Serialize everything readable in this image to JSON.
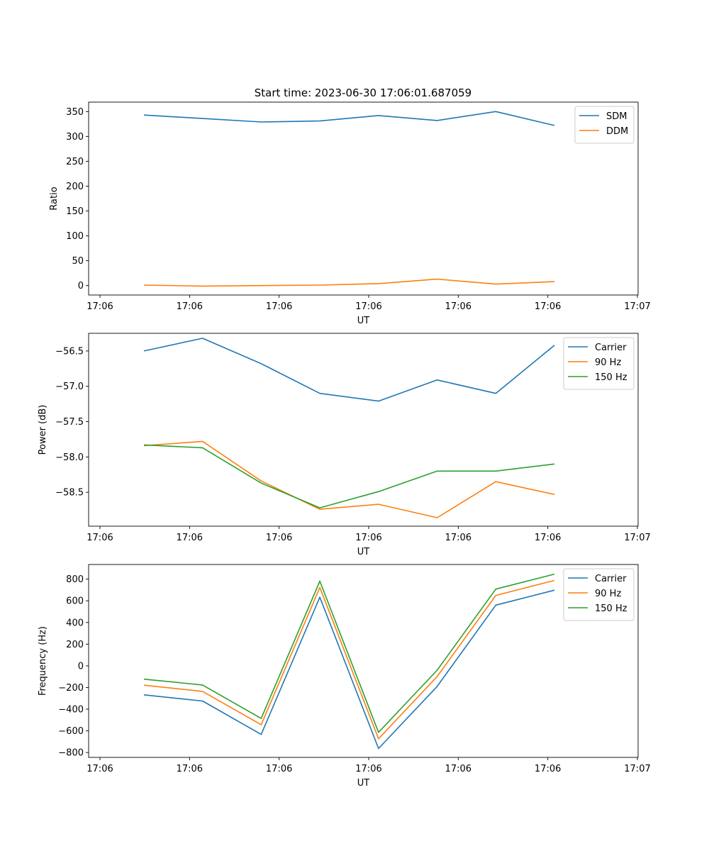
{
  "figure": {
    "title": "Start time: 2023-06-30 17:06:01.687059"
  },
  "chart_data": [
    {
      "type": "line",
      "xlabel": "UT",
      "ylabel": "Ratio",
      "x_tick_labels": [
        "17:06",
        "17:06",
        "17:06",
        "17:06",
        "17:06",
        "17:06",
        "17:07"
      ],
      "y_ticks": [
        0,
        50,
        100,
        150,
        200,
        250,
        300,
        350
      ],
      "y_tick_labels": [
        "0",
        "50",
        "100",
        "150",
        "200",
        "250",
        "300",
        "350"
      ],
      "ylim": [
        -19,
        369
      ],
      "grid": false,
      "legend": "top-right",
      "series": [
        {
          "name": "SDM",
          "color": "#1f77b4",
          "values": [
            343,
            336,
            329,
            331,
            342,
            332,
            350,
            322
          ]
        },
        {
          "name": "DDM",
          "color": "#ff7f0e",
          "values": [
            1,
            -1,
            0,
            1,
            4,
            13,
            3,
            8
          ]
        }
      ]
    },
    {
      "type": "line",
      "xlabel": "UT",
      "ylabel": "Power (dB)",
      "x_tick_labels": [
        "17:06",
        "17:06",
        "17:06",
        "17:06",
        "17:06",
        "17:06",
        "17:07"
      ],
      "y_ticks": [
        -58.5,
        -58.0,
        -57.5,
        -57.0,
        -56.5
      ],
      "y_tick_labels": [
        "−58.5",
        "−58.0",
        "−57.5",
        "−57.0",
        "−56.5"
      ],
      "ylim": [
        -58.98,
        -56.25
      ],
      "grid": false,
      "legend": "top-right",
      "series": [
        {
          "name": "Carrier",
          "color": "#1f77b4",
          "values": [
            -56.5,
            -56.32,
            -56.68,
            -57.1,
            -57.21,
            -56.91,
            -57.1,
            -56.42
          ]
        },
        {
          "name": "90 Hz",
          "color": "#ff7f0e",
          "values": [
            -57.84,
            -57.78,
            -58.34,
            -58.74,
            -58.67,
            -58.86,
            -58.35,
            -58.53
          ]
        },
        {
          "name": "150 Hz",
          "color": "#2ca02c",
          "values": [
            -57.83,
            -57.87,
            -58.37,
            -58.72,
            -58.49,
            -58.2,
            -58.2,
            -58.1
          ]
        }
      ]
    },
    {
      "type": "line",
      "xlabel": "UT",
      "ylabel": "Frequency (Hz)",
      "x_tick_labels": [
        "17:06",
        "17:06",
        "17:06",
        "17:06",
        "17:06",
        "17:06",
        "17:07"
      ],
      "y_ticks": [
        -800,
        -600,
        -400,
        -200,
        0,
        200,
        400,
        600,
        800
      ],
      "y_tick_labels": [
        "−800",
        "−600",
        "−400",
        "−200",
        "0",
        "200",
        "400",
        "600",
        "800"
      ],
      "ylim": [
        -845,
        935
      ],
      "grid": false,
      "legend": "top-right",
      "series": [
        {
          "name": "Carrier",
          "color": "#1f77b4",
          "values": [
            -268,
            -325,
            -633,
            633,
            -763,
            -190,
            560,
            698
          ]
        },
        {
          "name": "90 Hz",
          "color": "#ff7f0e",
          "values": [
            -179,
            -236,
            -543,
            723,
            -673,
            -98,
            650,
            788
          ]
        },
        {
          "name": "150 Hz",
          "color": "#2ca02c",
          "values": [
            -123,
            -177,
            -486,
            781,
            -614,
            -40,
            708,
            846
          ]
        }
      ]
    }
  ]
}
